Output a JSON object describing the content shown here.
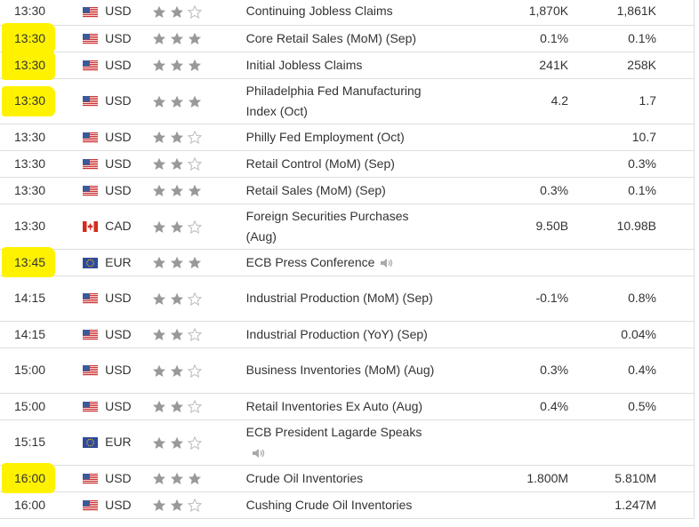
{
  "table": {
    "rows": [
      {
        "time": "13:30",
        "currency": "USD",
        "importance": 2,
        "event": "Continuing Jobless Claims",
        "forecast": "1,870K",
        "previous": "1,861K",
        "highlight": false,
        "audio": false
      },
      {
        "time": "13:30",
        "currency": "USD",
        "importance": 3,
        "event": "Core Retail Sales (MoM) (Sep)",
        "forecast": "0.1%",
        "previous": "0.1%",
        "highlight": true,
        "audio": false
      },
      {
        "time": "13:30",
        "currency": "USD",
        "importance": 3,
        "event": "Initial Jobless Claims",
        "forecast": "241K",
        "previous": "258K",
        "highlight": true,
        "audio": false
      },
      {
        "time": "13:30",
        "currency": "USD",
        "importance": 3,
        "event": "Philadelphia Fed Manufacturing Index (Oct)",
        "forecast": "4.2",
        "previous": "1.7",
        "highlight": true,
        "audio": false
      },
      {
        "time": "13:30",
        "currency": "USD",
        "importance": 2,
        "event": "Philly Fed Employment (Oct)",
        "forecast": null,
        "previous": "10.7",
        "highlight": false,
        "audio": false
      },
      {
        "time": "13:30",
        "currency": "USD",
        "importance": 2,
        "event": "Retail Control (MoM) (Sep)",
        "forecast": null,
        "previous": "0.3%",
        "highlight": false,
        "audio": false
      },
      {
        "time": "13:30",
        "currency": "USD",
        "importance": 3,
        "event": "Retail Sales (MoM) (Sep)",
        "forecast": "0.3%",
        "previous": "0.1%",
        "highlight": false,
        "audio": false
      },
      {
        "time": "13:30",
        "currency": "CAD",
        "importance": 2,
        "event": "Foreign Securities Purchases (Aug)",
        "forecast": "9.50B",
        "previous": "10.98B",
        "highlight": false,
        "audio": false
      },
      {
        "time": "13:45",
        "currency": "EUR",
        "importance": 3,
        "event": "ECB Press Conference",
        "forecast": null,
        "previous": null,
        "highlight": true,
        "audio": true
      },
      {
        "time": "14:15",
        "currency": "USD",
        "importance": 2,
        "event": "Industrial Production (MoM) (Sep)",
        "forecast": "-0.1%",
        "previous": "0.8%",
        "highlight": false,
        "audio": false
      },
      {
        "time": "14:15",
        "currency": "USD",
        "importance": 2,
        "event": "Industrial Production (YoY) (Sep)",
        "forecast": null,
        "previous": "0.04%",
        "highlight": false,
        "audio": false
      },
      {
        "time": "15:00",
        "currency": "USD",
        "importance": 2,
        "event": "Business Inventories (MoM) (Aug)",
        "forecast": "0.3%",
        "previous": "0.4%",
        "highlight": false,
        "audio": false
      },
      {
        "time": "15:00",
        "currency": "USD",
        "importance": 2,
        "event": "Retail Inventories Ex Auto (Aug)",
        "forecast": "0.4%",
        "previous": "0.5%",
        "highlight": false,
        "audio": false
      },
      {
        "time": "15:15",
        "currency": "EUR",
        "importance": 2,
        "event": "ECB President Lagarde Speaks",
        "forecast": null,
        "previous": null,
        "highlight": false,
        "audio": true
      },
      {
        "time": "16:00",
        "currency": "USD",
        "importance": 3,
        "event": "Crude Oil Inventories",
        "forecast": "1.800M",
        "previous": "5.810M",
        "highlight": true,
        "audio": false
      },
      {
        "time": "16:00",
        "currency": "USD",
        "importance": 2,
        "event": "Cushing Crude Oil Inventories",
        "forecast": null,
        "previous": "1.247M",
        "highlight": false,
        "audio": false
      }
    ]
  }
}
